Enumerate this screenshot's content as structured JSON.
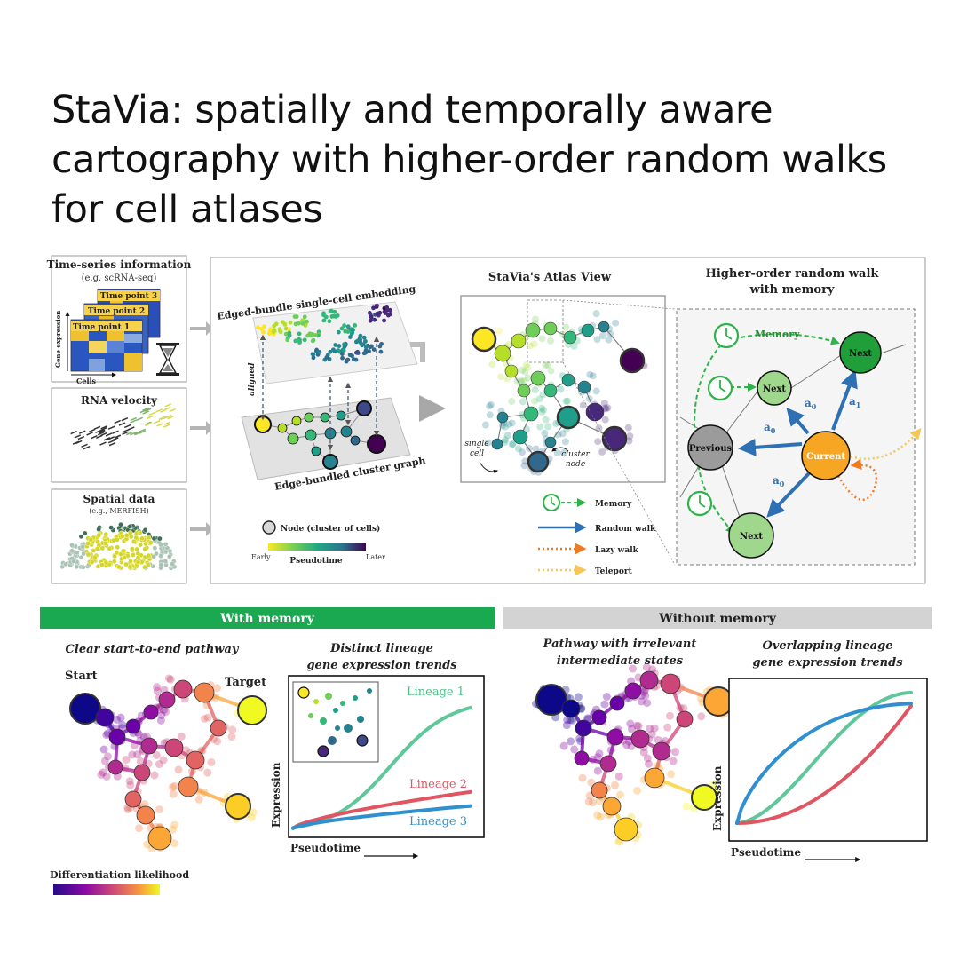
{
  "title_lines": [
    "StaVia: spatially and temporally aware",
    "cartography with higher-order random walks",
    "for cell atlases"
  ],
  "inputs": {
    "timeseries": {
      "title": "Time-series information",
      "subtitle": "(e.g. scRNA-seq)",
      "timepoints": [
        "Time point 3",
        "Time point 2",
        "Time point 1"
      ],
      "yaxis": "Gene expression",
      "xaxis": "Cells"
    },
    "velocity": {
      "title": "RNA velocity"
    },
    "spatial": {
      "title": "Spatial data",
      "subtitle": "(e.g., MERFISH)"
    }
  },
  "embedding": {
    "top_label": "Edged-bundle single-cell embedding",
    "bottom_label": "Edge-bundled cluster graph",
    "aligned": "aligned",
    "legend_node": "Node (cluster of cells)",
    "pseudotime": {
      "early": "Early",
      "label": "Pseudotime",
      "later": "Later"
    }
  },
  "atlas": {
    "title": "StaVia's Atlas View",
    "single_cell": "single\ncell",
    "cluster_node": "cluster\nnode"
  },
  "walk": {
    "title_1": "Higher-order random walk",
    "title_2": "with memory",
    "memory": "Memory",
    "next": "Next",
    "previous": "Previous",
    "current": "Current",
    "a0": "a",
    "sub0": "0",
    "sub1": "1"
  },
  "walk_legend": [
    "Memory",
    "Random walk",
    "Lazy walk",
    "Teleport"
  ],
  "with_memory": {
    "header": "With memory",
    "left_caption": "Clear start-to-end pathway",
    "start": "Start",
    "target": "Target",
    "right_caption_1": "Distinct lineage",
    "right_caption_2": "gene expression trends",
    "colorbar_label": "Differentiation likelihood"
  },
  "without_memory": {
    "header": "Without memory",
    "left_caption_1": "Pathway with irrelevant",
    "left_caption_2": "intermediate states",
    "right_caption_1": "Overlapping lineage",
    "right_caption_2": "gene expression trends"
  },
  "chart_data": [
    {
      "type": "line",
      "xlabel": "Pseudotime",
      "ylabel": "Expression",
      "series": [
        {
          "name": "Lineage 1",
          "color": "#5fc79a"
        },
        {
          "name": "Lineage 2",
          "color": "#e05561"
        },
        {
          "name": "Lineage 3",
          "color": "#2f8fcf"
        }
      ]
    },
    {
      "type": "line",
      "xlabel": "Pseudotime",
      "ylabel": "Expression",
      "series": [
        {
          "color": "#5fc79a"
        },
        {
          "color": "#e05561"
        },
        {
          "color": "#2f8fcf"
        }
      ]
    }
  ],
  "colors": {
    "with_memory_bar": "#1aa850",
    "without_memory_bar": "#d3d3d3",
    "memory_green": "#2db34a",
    "random_walk_blue": "#2f6fb3",
    "lazy_orange": "#ef7a22",
    "teleport_yellow": "#f7c659"
  }
}
